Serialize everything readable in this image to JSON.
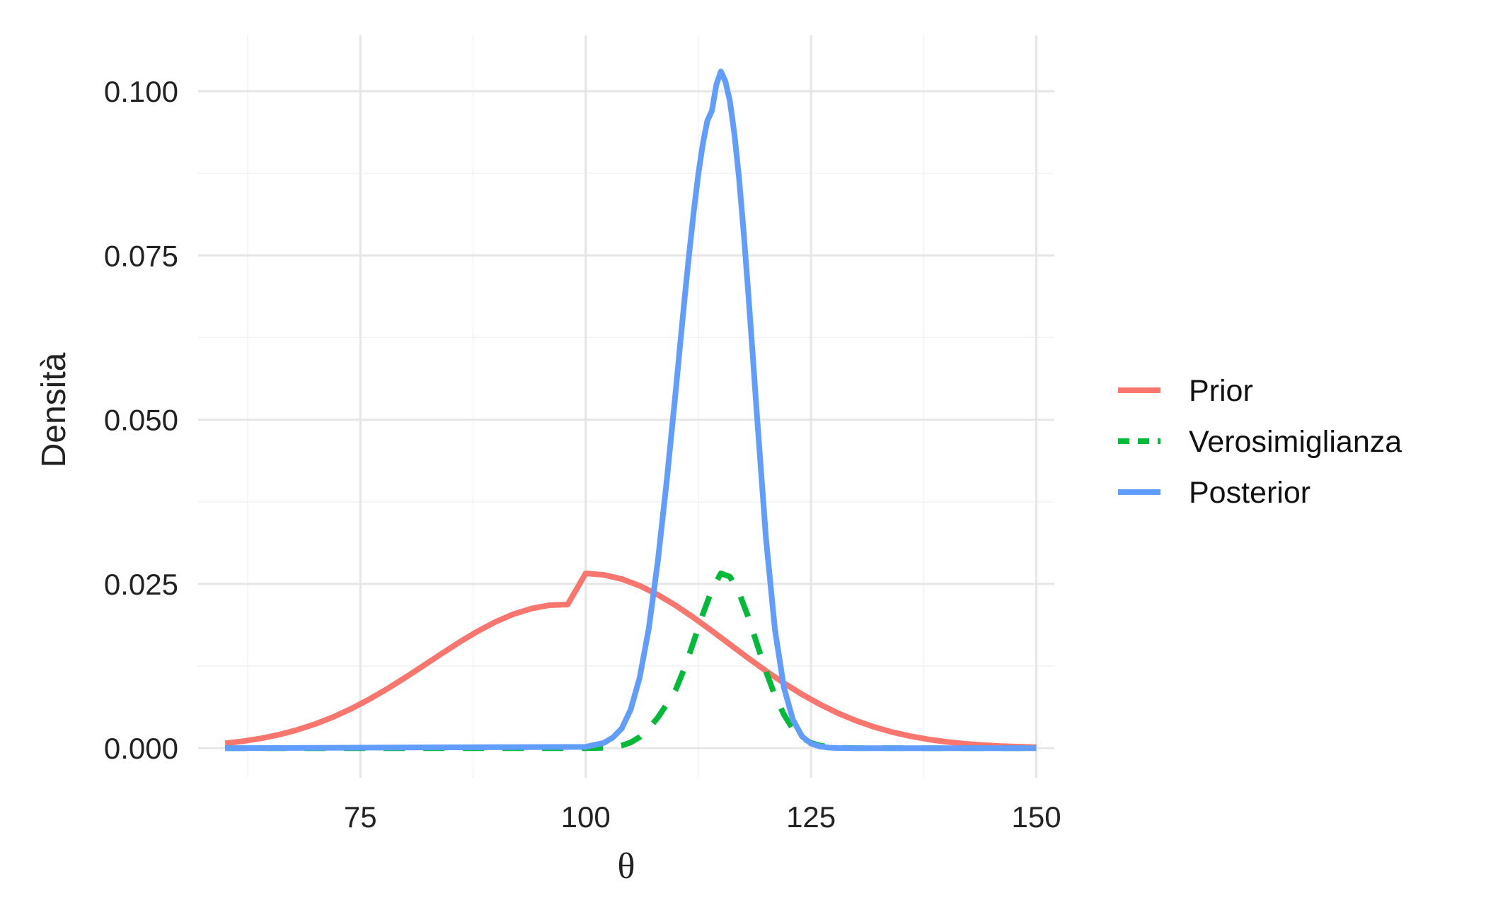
{
  "chart_data": {
    "type": "line",
    "xlabel": "θ",
    "ylabel": "Densità",
    "xlim": [
      57,
      152
    ],
    "ylim": [
      -0.0045,
      0.1085
    ],
    "x_ticks": [
      75,
      100,
      125,
      150
    ],
    "x_tick_labels": [
      "75",
      "100",
      "125",
      "150"
    ],
    "x_minor_ticks": [
      62.5,
      87.5,
      112.5,
      137.5
    ],
    "y_ticks": [
      0,
      0.025,
      0.05,
      0.075,
      0.1
    ],
    "y_tick_labels": [
      "0.000",
      "0.025",
      "0.050",
      "0.075",
      "0.100"
    ],
    "y_minor_ticks": [
      0.0125,
      0.0375,
      0.0625,
      0.0875
    ],
    "grid": true,
    "legend_position": "right",
    "series": [
      {
        "name": "Prior",
        "color": "#F8766D",
        "dash": "solid",
        "x": [
          60,
          62,
          64,
          66,
          68,
          70,
          72,
          74,
          76,
          78,
          80,
          82,
          84,
          86,
          88,
          90,
          92,
          94,
          96,
          98,
          100,
          102,
          104,
          106,
          108,
          110,
          112,
          114,
          116,
          118,
          120,
          122,
          124,
          126,
          128,
          130,
          132,
          134,
          136,
          138,
          140,
          142,
          144,
          146,
          148,
          150
        ],
        "y": [
          0.00073,
          0.00106,
          0.00149,
          0.00206,
          0.00278,
          0.00368,
          0.00475,
          0.00601,
          0.00745,
          0.00904,
          0.01076,
          0.01256,
          0.01437,
          0.01614,
          0.01778,
          0.01923,
          0.02041,
          0.02126,
          0.02176,
          0.02187,
          0.0266,
          0.02638,
          0.02575,
          0.02472,
          0.02335,
          0.02171,
          0.01985,
          0.01786,
          0.0158,
          0.01375,
          0.01176,
          0.0099,
          0.00819,
          0.00666,
          0.00532,
          0.00418,
          0.00323,
          0.00245,
          0.00183,
          0.00134,
          0.00096,
          0.00068,
          0.00047,
          0.00032,
          0.00022,
          0.00014
        ]
      },
      {
        "name": "Verosimiglianza",
        "color": "#00BA38",
        "dash": "dashed",
        "x": [
          60,
          100,
          102,
          103,
          104,
          105,
          106,
          107,
          108,
          109,
          110,
          111,
          112,
          113,
          114,
          115,
          116,
          117,
          118,
          119,
          120,
          121,
          122,
          123,
          124,
          125,
          126,
          127,
          128,
          130,
          135,
          150
        ],
        "y": [
          0,
          0,
          5e-05,
          0.00016,
          0.0004,
          0.00088,
          0.0017,
          0.00295,
          0.00465,
          0.0067,
          0.00893,
          0.0123,
          0.0163,
          0.0204,
          0.0241,
          0.0266,
          0.0261,
          0.0237,
          0.0201,
          0.0159,
          0.0117,
          0.008,
          0.0051,
          0.0029,
          0.0016,
          0.0008,
          0.0004,
          0.00017,
          7e-05,
          1e-05,
          0,
          0
        ]
      },
      {
        "name": "Posterior",
        "color": "#619CFF",
        "dash": "solid",
        "x": [
          60,
          100,
          102,
          103,
          104,
          105,
          106,
          107,
          108,
          109,
          110,
          110.5,
          111,
          111.5,
          112,
          112.5,
          113,
          113.5,
          114,
          114.5,
          115,
          115.5,
          116,
          116.5,
          117,
          117.5,
          118,
          118.5,
          119,
          120,
          121,
          122,
          123,
          124,
          125,
          126,
          127,
          128,
          130,
          135,
          150
        ],
        "y": [
          0,
          0.0002,
          0.0008,
          0.0016,
          0.003,
          0.0059,
          0.0108,
          0.0182,
          0.0284,
          0.0408,
          0.0545,
          0.0617,
          0.0688,
          0.0755,
          0.0818,
          0.0874,
          0.092,
          0.0955,
          0.097,
          0.101,
          0.103,
          0.1015,
          0.0985,
          0.0935,
          0.087,
          0.079,
          0.07,
          0.0605,
          0.0507,
          0.032,
          0.018,
          0.0092,
          0.0043,
          0.0018,
          0.0007,
          0.00025,
          8e-05,
          2e-05,
          0,
          0,
          0
        ]
      }
    ]
  }
}
